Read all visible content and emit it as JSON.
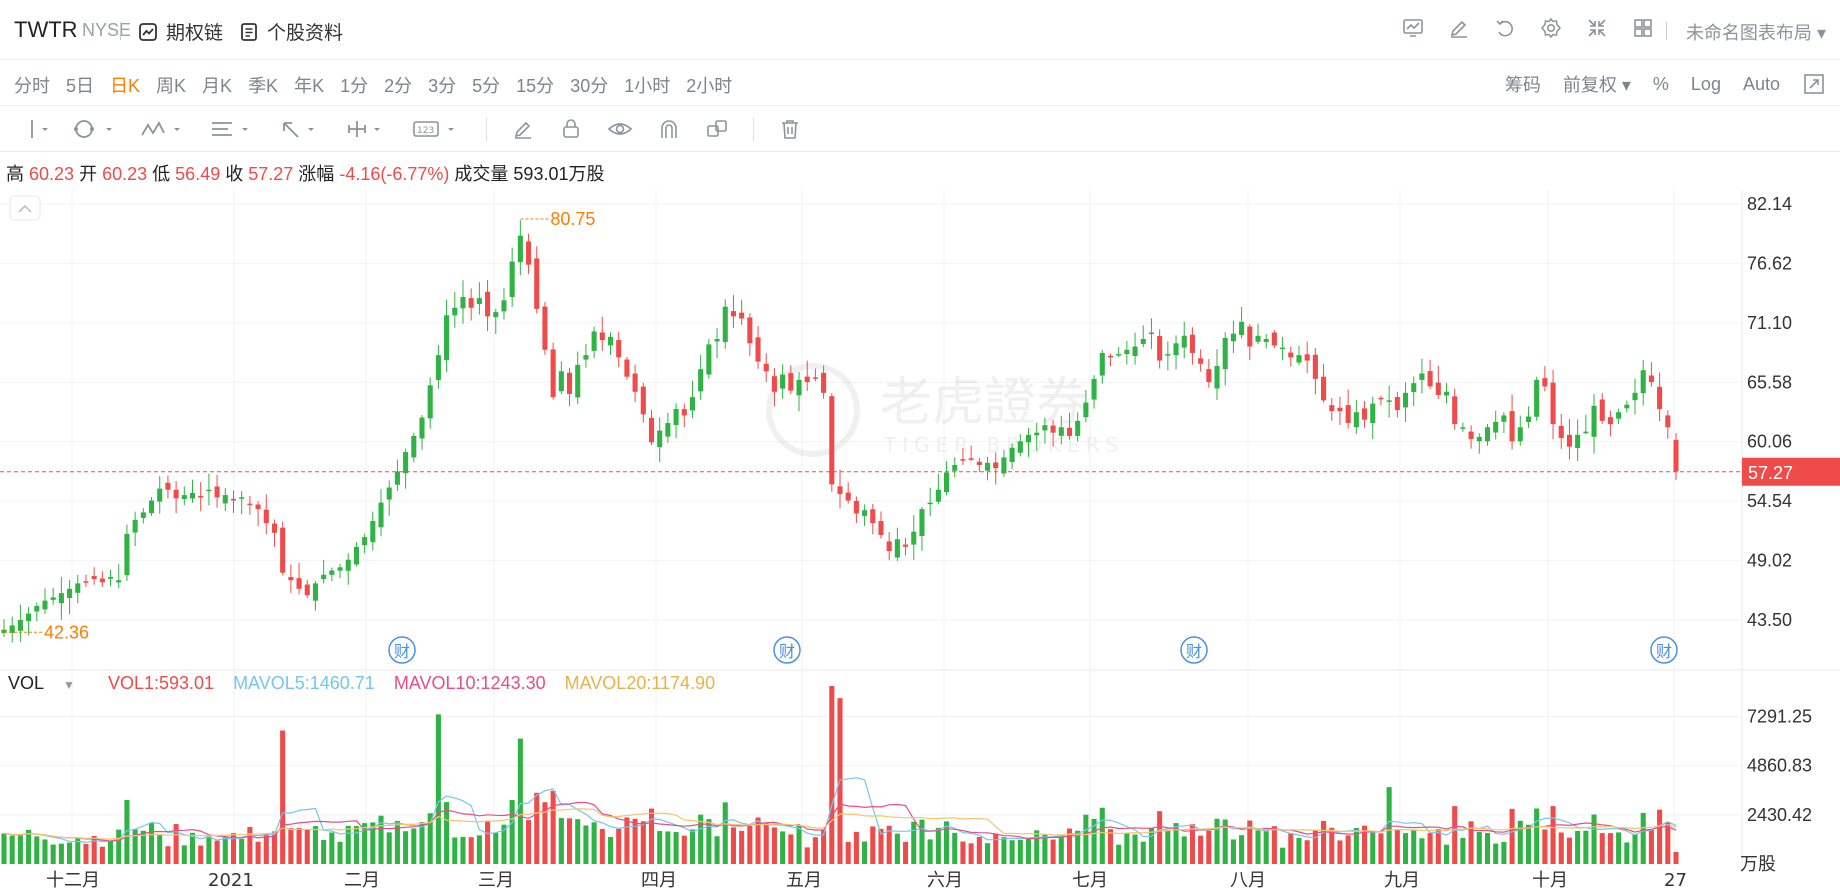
{
  "header": {
    "symbol": "TWTR",
    "exchange": "NYSE",
    "links": [
      {
        "label": "期权链",
        "icon": "chart-card-icon"
      },
      {
        "label": "个股资料",
        "icon": "document-icon"
      }
    ],
    "layout_name": "未命名图表布局"
  },
  "periods": {
    "items": [
      "分时",
      "5日",
      "日K",
      "周K",
      "月K",
      "季K",
      "年K",
      "1分",
      "2分",
      "3分",
      "5分",
      "15分",
      "30分",
      "1小时",
      "2小时"
    ],
    "active": "日K"
  },
  "options": {
    "chips": "筹码",
    "adjust": "前复权",
    "percent": "%",
    "log": "Log",
    "auto": "Auto"
  },
  "info": {
    "high_label": "高",
    "high": "60.23",
    "open_label": "开",
    "open": "60.23",
    "low_label": "低",
    "low": "56.49",
    "close_label": "收",
    "close": "57.27",
    "change_label": "涨幅",
    "change": "-4.16(-6.77%)",
    "volume_label": "成交量",
    "volume": "593.01万股"
  },
  "volume_header": {
    "label": "VOL",
    "vol1": "VOL1:593.01",
    "mavol5": "MAVOL5:1460.71",
    "mavol10": "MAVOL10:1243.30",
    "mavol20": "MAVOL20:1174.90",
    "unit": "万股"
  },
  "watermark": {
    "cn": "老虎證券",
    "en": "TIGER BROKERS"
  },
  "earnings_marker": "财",
  "colors": {
    "up": "#2fb344",
    "down": "#f04b4b",
    "accent": "#ff7d00",
    "mavol5": "#74c6f0",
    "mavol10": "#e84d8a",
    "mavol20": "#f2c66d",
    "grid": "#f0f2f5",
    "last_price_bg": "#f04b4b"
  },
  "chart_data": {
    "type": "candlestick",
    "y_ticks": [
      "82.14",
      "76.62",
      "71.10",
      "65.58",
      "60.06",
      "54.54",
      "49.02",
      "43.50"
    ],
    "ylim": [
      43.5,
      82.14
    ],
    "vol_ticks": [
      "7291.25",
      "4860.83",
      "2430.42"
    ],
    "vol_max": 8900,
    "x_labels": [
      "十二月",
      "2021",
      "二月",
      "三月",
      "四月",
      "五月",
      "六月",
      "七月",
      "八月",
      "九月",
      "十月",
      "27"
    ],
    "max_marker": "80.75",
    "min_marker": "42.36",
    "last_price": "57.27",
    "closes": [
      42.6,
      43.0,
      43.5,
      44.1,
      44.8,
      45.3,
      45.6,
      46.0,
      46.4,
      46.9,
      47.0,
      47.3,
      47.0,
      47.5,
      47.2,
      51.5,
      52.8,
      53.5,
      54.6,
      55.7,
      55.6,
      54.8,
      55.1,
      55.3,
      55.0,
      55.6,
      54.9,
      55.1,
      54.6,
      54.9,
      54.3,
      53.8,
      52.5,
      51.6,
      47.9,
      47.2,
      46.4,
      45.8,
      46.9,
      47.7,
      48.1,
      48.4,
      49.1,
      50.3,
      51.2,
      52.7,
      54.4,
      55.8,
      57.3,
      59.1,
      60.6,
      62.3,
      65.3,
      68.1,
      71.8,
      72.5,
      73.5,
      72.5,
      73.4,
      71.7,
      72.1,
      73.2,
      76.8,
      79.2,
      76.5,
      72.4,
      68.6,
      64.2,
      66.6,
      64.5,
      67.2,
      68.1,
      70.3,
      69.5,
      69.8,
      67.9,
      66.1,
      64.7,
      62.6,
      60.0,
      61.1,
      61.8,
      63.1,
      62.5,
      64.2,
      66.8,
      69.1,
      69.6,
      72.6,
      71.7,
      71.5,
      69.2,
      67.5,
      66.6,
      64.7,
      66.3,
      64.8,
      65.8,
      65.6,
      66.0,
      64.6,
      56.1,
      55.2,
      54.6,
      53.4,
      53.7,
      52.5,
      51.4,
      49.9,
      51.0,
      50.3,
      51.7,
      53.8,
      54.4,
      55.6,
      57.2,
      57.9,
      58.3,
      58.5,
      57.9,
      58.1,
      57.6,
      58.6,
      59.5,
      60.1,
      60.7,
      60.9,
      61.6,
      60.9,
      61.4,
      60.6,
      62.0,
      63.7,
      65.9,
      68.3,
      67.9,
      68.2,
      68.6,
      68.9,
      69.6,
      70.2,
      67.6,
      68.2,
      69.2,
      69.9,
      68.3,
      67.3,
      65.6,
      67.1,
      69.7,
      70.1,
      71.2,
      68.9,
      69.9,
      69.6,
      69.0,
      68.8,
      67.9,
      68.1,
      67.6,
      65.9,
      63.9,
      62.9,
      62.9,
      61.8,
      62.8,
      62.1,
      63.6,
      64.1,
      63.9,
      63.0,
      64.6,
      65.5,
      66.4,
      65.2,
      64.4,
      64.7,
      61.7,
      61.4,
      60.3,
      60.5,
      61.4,
      61.9,
      62.5,
      60.1,
      61.4,
      62.4,
      65.8,
      65.2,
      61.7,
      60.4,
      59.6,
      60.7,
      61.0,
      63.4,
      62.0,
      61.7,
      62.8,
      63.5,
      64.6,
      66.7,
      65.6,
      63.1,
      61.4,
      57.3
    ]
  }
}
